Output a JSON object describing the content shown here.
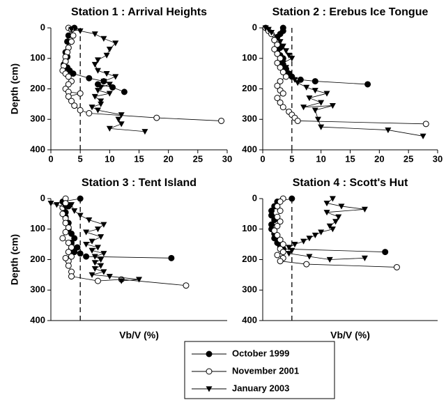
{
  "chart_data": [
    {
      "type": "line",
      "title": "Station 1 : Arrival Heights",
      "ylabel": "Depth (cm)",
      "xlim": [
        0,
        30
      ],
      "ylim": [
        0,
        400
      ],
      "y_inverted": true,
      "refline_x": 5,
      "xticks": [
        0,
        5,
        10,
        15,
        20,
        25,
        30
      ],
      "yticks": [
        0,
        100,
        200,
        300,
        400
      ],
      "series": [
        {
          "name": "October 1999",
          "color": "#000000",
          "marker": "circle",
          "x": [
            4,
            3.5,
            3,
            2.8,
            3,
            2.5,
            2.8,
            2.5,
            2.2,
            2.8,
            3.2,
            3.8,
            6.5,
            9,
            8,
            10.5,
            12.5
          ],
          "values": [
            0,
            5,
            25,
            45,
            65,
            80,
            95,
            110,
            120,
            130,
            140,
            150,
            165,
            175,
            185,
            195,
            210
          ]
        },
        {
          "name": "November 2001",
          "color": "#000000",
          "marker": "open-circle",
          "x": [
            3,
            3.5,
            3.8,
            3.5,
            3,
            2.8,
            2.5,
            2.5,
            2.2,
            2,
            2.5,
            3,
            3.5,
            3,
            2.5,
            3,
            5,
            3,
            3.5,
            4,
            5,
            6.5,
            18,
            29
          ],
          "values": [
            0,
            5,
            25,
            45,
            65,
            80,
            95,
            110,
            125,
            140,
            150,
            160,
            175,
            185,
            200,
            210,
            215,
            225,
            240,
            255,
            270,
            280,
            295,
            305
          ]
        },
        {
          "name": "January 2003",
          "color": "#000000",
          "marker": "triangle-down",
          "x": [
            3.5,
            5,
            7.5,
            9,
            11,
            10,
            9.5,
            8,
            7.5,
            8,
            9.5,
            11,
            9,
            10,
            8.5,
            8,
            10,
            7.5,
            8.5,
            8.5,
            7,
            8,
            12,
            11.5,
            12,
            10,
            16
          ],
          "values": [
            5,
            10,
            20,
            35,
            50,
            70,
            90,
            105,
            120,
            140,
            150,
            160,
            175,
            185,
            195,
            205,
            215,
            225,
            240,
            250,
            260,
            270,
            285,
            300,
            315,
            330,
            340
          ]
        }
      ]
    },
    {
      "type": "line",
      "title": "Station 2 : Erebus Ice Tongue",
      "xlim": [
        0,
        30
      ],
      "ylim": [
        0,
        400
      ],
      "y_inverted": true,
      "refline_x": 5,
      "xticks": [
        0,
        5,
        10,
        15,
        20,
        25,
        30
      ],
      "yticks": [
        0,
        100,
        200,
        300,
        400
      ],
      "series": [
        {
          "x": [
            3.5,
            3.5,
            3,
            2.5,
            2,
            2.5,
            3,
            2.5,
            3,
            3.5,
            3,
            3.5,
            4,
            4.5,
            5,
            6.5,
            9,
            18
          ],
          "values": [
            0,
            10,
            20,
            30,
            40,
            55,
            65,
            75,
            90,
            100,
            110,
            120,
            135,
            150,
            160,
            170,
            175,
            185
          ]
        },
        {
          "x": [
            0.5,
            1,
            1.5,
            2,
            2.5,
            2,
            2.5,
            3,
            2.5,
            3,
            3.5,
            4,
            3,
            2.5,
            3,
            3.5,
            2.5,
            3,
            3.5,
            4.5,
            5,
            5.5,
            6,
            28
          ],
          "values": [
            0,
            10,
            20,
            40,
            55,
            70,
            85,
            100,
            115,
            130,
            145,
            160,
            175,
            190,
            205,
            215,
            230,
            245,
            260,
            275,
            285,
            295,
            305,
            315
          ]
        },
        {
          "x": [
            0.5,
            1,
            1.5,
            2.5,
            3,
            3.5,
            4,
            4.5,
            5,
            3.5,
            4,
            4.5,
            5.5,
            6,
            7.5,
            9,
            11,
            8,
            10,
            7,
            12,
            9,
            9.5,
            10,
            21.5,
            27.5
          ],
          "values": [
            0,
            5,
            15,
            30,
            45,
            60,
            75,
            90,
            100,
            115,
            130,
            150,
            170,
            180,
            195,
            205,
            215,
            230,
            245,
            260,
            255,
            270,
            300,
            325,
            335,
            355
          ]
        }
      ]
    },
    {
      "type": "line",
      "title": "Station 3 : Tent Island",
      "ylabel": "Depth (cm)",
      "xlabel": "Vb/V (%)",
      "xlim": [
        0,
        30
      ],
      "ylim": [
        0,
        400
      ],
      "y_inverted": true,
      "refline_x": 5,
      "yticks": [
        0,
        100,
        200,
        300,
        400
      ],
      "series": [
        {
          "x": [
            5,
            2,
            3,
            2.5,
            2.5,
            3,
            3,
            3.5,
            4,
            3.5,
            4.5,
            3.5,
            4,
            5,
            6,
            20.5
          ],
          "values": [
            0,
            10,
            25,
            45,
            60,
            80,
            100,
            115,
            130,
            145,
            160,
            165,
            175,
            180,
            190,
            195
          ]
        },
        {
          "x": [
            2.5,
            2.5,
            2,
            2,
            2.5,
            2.5,
            3,
            2.5,
            2,
            3,
            3.5,
            3,
            3.5,
            3,
            2.5,
            3,
            3.5,
            3.5,
            8,
            12,
            23
          ],
          "values": [
            0,
            15,
            30,
            50,
            65,
            80,
            95,
            110,
            130,
            145,
            160,
            175,
            190,
            205,
            195,
            220,
            240,
            255,
            270,
            265,
            285
          ]
        },
        {
          "x": [
            0,
            1,
            2.5,
            3.5,
            4,
            5,
            6.5,
            9,
            8,
            6,
            8.5,
            7,
            6,
            8,
            7,
            9,
            7.5,
            8.5,
            7.5,
            8.5,
            7.5,
            9,
            7,
            10,
            15,
            12
          ],
          "values": [
            15,
            20,
            30,
            20,
            40,
            55,
            70,
            85,
            100,
            110,
            125,
            140,
            150,
            160,
            170,
            180,
            190,
            200,
            210,
            220,
            230,
            240,
            250,
            255,
            265,
            270
          ]
        }
      ]
    },
    {
      "type": "line",
      "title": "Station 4 : Scott's Hut",
      "xlabel": "Vb/V (%)",
      "xlim": [
        0,
        30
      ],
      "ylim": [
        0,
        400
      ],
      "y_inverted": true,
      "refline_x": 5,
      "yticks": [
        0,
        100,
        200,
        300,
        400
      ],
      "series": [
        {
          "x": [
            5,
            2.5,
            2,
            1.5,
            1.5,
            2,
            1.5,
            1.5,
            2,
            2,
            2.5,
            3,
            3.5,
            21
          ],
          "values": [
            0,
            10,
            25,
            40,
            55,
            70,
            85,
            100,
            115,
            130,
            145,
            155,
            165,
            175
          ]
        },
        {
          "x": [
            3.5,
            3,
            2.5,
            3,
            2.5,
            3,
            2.5,
            2,
            2.5,
            3,
            3.5,
            3,
            3.5,
            2.5,
            3.5,
            3,
            7.5,
            23
          ],
          "values": [
            0,
            10,
            25,
            40,
            60,
            75,
            90,
            105,
            120,
            135,
            150,
            165,
            175,
            185,
            195,
            205,
            215,
            225
          ]
        },
        {
          "x": [
            12,
            11,
            13.5,
            17.5,
            11,
            13,
            12.5,
            11.5,
            12,
            10,
            9,
            8,
            7,
            5.5,
            4.5,
            5,
            4.5,
            8,
            11.5,
            17.5
          ],
          "values": [
            0,
            15,
            25,
            35,
            45,
            60,
            75,
            90,
            100,
            110,
            120,
            130,
            140,
            150,
            160,
            170,
            180,
            190,
            200,
            195
          ]
        }
      ]
    }
  ]
}
